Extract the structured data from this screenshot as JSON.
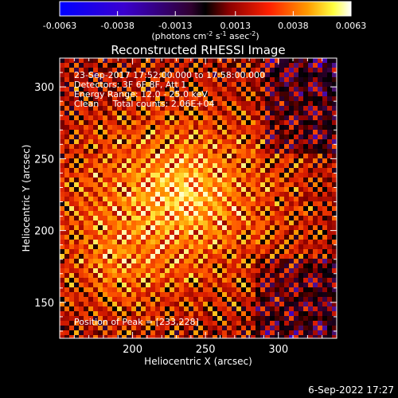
{
  "colorbar": {
    "ticks": [
      "-0.0063",
      "-0.0038",
      "-0.0013",
      "0.0013",
      "0.0038",
      "0.0063"
    ],
    "unit_label_main": "(photons cm",
    "unit_label_sup1": "-2",
    "unit_label_mid": " s",
    "unit_label_sup2": "-1",
    "unit_label_end": " asec",
    "unit_label_sup3": "-2",
    "unit_label_close": ")",
    "range": [
      -0.0063,
      0.0063
    ],
    "colormap": "rhessi-blue-white"
  },
  "chart_data": {
    "type": "heatmap",
    "title": "Reconstructed RHESSI Image",
    "xlabel": "Heliocentric X (arcsec)",
    "ylabel": "Heliocentric Y (arcsec)",
    "xlim": [
      150,
      340
    ],
    "ylim": [
      125,
      320
    ],
    "xticks": [
      "200",
      "250",
      "300"
    ],
    "yticks": [
      "150",
      "200",
      "250",
      "300"
    ],
    "xtick_values": [
      200,
      250,
      300
    ],
    "ytick_values": [
      150,
      200,
      250,
      300
    ],
    "peak": [
      233,
      228
    ],
    "annotations": [
      "23-Sep-2017 17:52:00.000 to 17:58:00.000",
      "Detectors: 3F 6F 8F, Att 1",
      "Energy Range: 12.0 - 25.0 keV",
      "Clean     Total counts: 2.06E+04"
    ],
    "peak_label": "Position of Peak = [233,228]"
  },
  "footer": {
    "timestamp": "6-Sep-2022 17:27"
  }
}
